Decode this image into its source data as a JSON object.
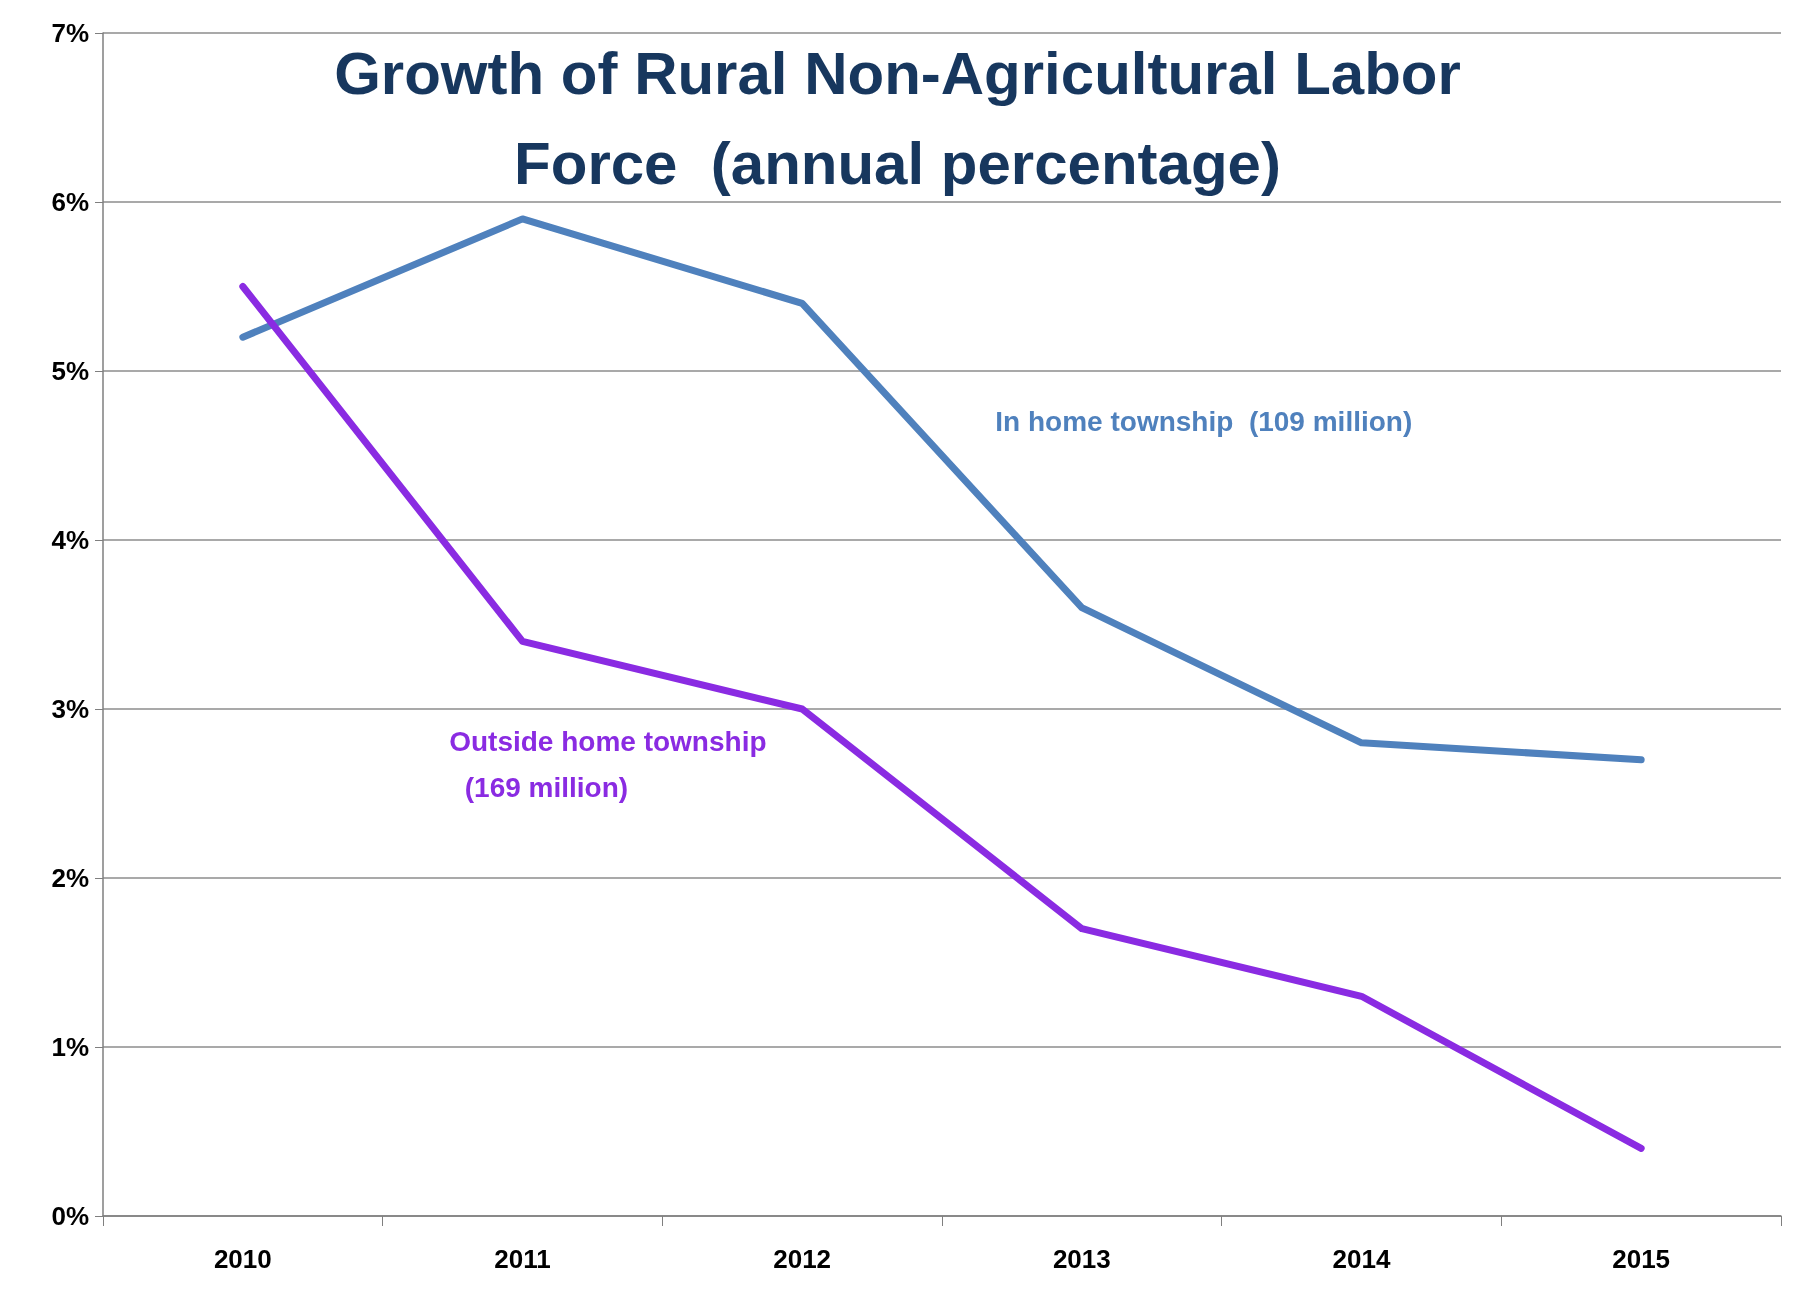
{
  "chart_data": {
    "type": "line",
    "title": "Growth of Rural Non-Agricultural Labor\nForce  (annual percentage)",
    "categories": [
      "2010",
      "2011",
      "2012",
      "2013",
      "2014",
      "2015"
    ],
    "series": [
      {
        "name": "In home township  (109 million)",
        "color": "#4f81bd",
        "values": [
          5.2,
          5.9,
          5.4,
          3.6,
          2.8,
          2.7
        ]
      },
      {
        "name": "Outside home township\n  (169 million)",
        "color": "#8a2be2",
        "values": [
          5.5,
          3.4,
          3.0,
          1.7,
          1.3,
          0.4
        ]
      }
    ],
    "ylim": [
      0,
      7
    ],
    "yticks": [
      {
        "value": 0,
        "label": "0%"
      },
      {
        "value": 1,
        "label": "1%"
      },
      {
        "value": 2,
        "label": "2%"
      },
      {
        "value": 3,
        "label": "3%"
      },
      {
        "value": 4,
        "label": "4%"
      },
      {
        "value": 5,
        "label": "5%"
      },
      {
        "value": 6,
        "label": "6%"
      },
      {
        "value": 7,
        "label": "7%"
      }
    ],
    "grid": "y",
    "legend": false,
    "marker": "none",
    "line_style": "solid"
  }
}
